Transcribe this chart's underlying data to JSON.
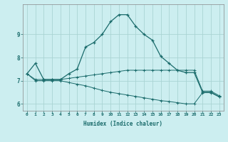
{
  "title": "",
  "xlabel": "Humidex (Indice chaleur)",
  "background_color": "#cceef0",
  "grid_color": "#aad4d4",
  "line_color": "#1a6b6b",
  "x_ticks": [
    0,
    1,
    2,
    3,
    4,
    5,
    6,
    7,
    8,
    9,
    10,
    11,
    12,
    13,
    14,
    15,
    16,
    17,
    18,
    19,
    20,
    21,
    22,
    23
  ],
  "y_ticks": [
    6,
    7,
    8,
    9
  ],
  "ylim": [
    5.7,
    10.3
  ],
  "xlim": [
    -0.5,
    23.5
  ],
  "line1_x": [
    0,
    1,
    2,
    3,
    4,
    5,
    6,
    7,
    8,
    9,
    10,
    11,
    12,
    13,
    14,
    15,
    16,
    17,
    18,
    19,
    20,
    21,
    22,
    23
  ],
  "line1_y": [
    7.3,
    7.75,
    7.05,
    7.05,
    7.05,
    7.3,
    7.5,
    8.45,
    8.65,
    9.0,
    9.55,
    9.85,
    9.85,
    9.35,
    9.0,
    8.75,
    8.05,
    7.75,
    7.45,
    7.35,
    7.35,
    6.5,
    6.5,
    6.3
  ],
  "line2_x": [
    0,
    1,
    2,
    3,
    4,
    5,
    6,
    7,
    8,
    9,
    10,
    11,
    12,
    13,
    14,
    15,
    16,
    17,
    18,
    19,
    20,
    21,
    22,
    23
  ],
  "line2_y": [
    7.3,
    7.05,
    7.05,
    7.05,
    7.05,
    7.1,
    7.15,
    7.2,
    7.25,
    7.3,
    7.35,
    7.4,
    7.45,
    7.45,
    7.45,
    7.45,
    7.45,
    7.45,
    7.45,
    7.45,
    7.45,
    6.55,
    6.55,
    6.35
  ],
  "line3_x": [
    0,
    1,
    2,
    3,
    4,
    5,
    6,
    7,
    8,
    9,
    10,
    11,
    12,
    13,
    14,
    15,
    16,
    17,
    18,
    19,
    20,
    21,
    22,
    23
  ],
  "line3_y": [
    7.3,
    7.0,
    7.0,
    7.0,
    7.0,
    6.92,
    6.85,
    6.78,
    6.68,
    6.58,
    6.5,
    6.44,
    6.38,
    6.32,
    6.26,
    6.2,
    6.14,
    6.1,
    6.05,
    6.0,
    6.0,
    6.48,
    6.48,
    6.3
  ]
}
